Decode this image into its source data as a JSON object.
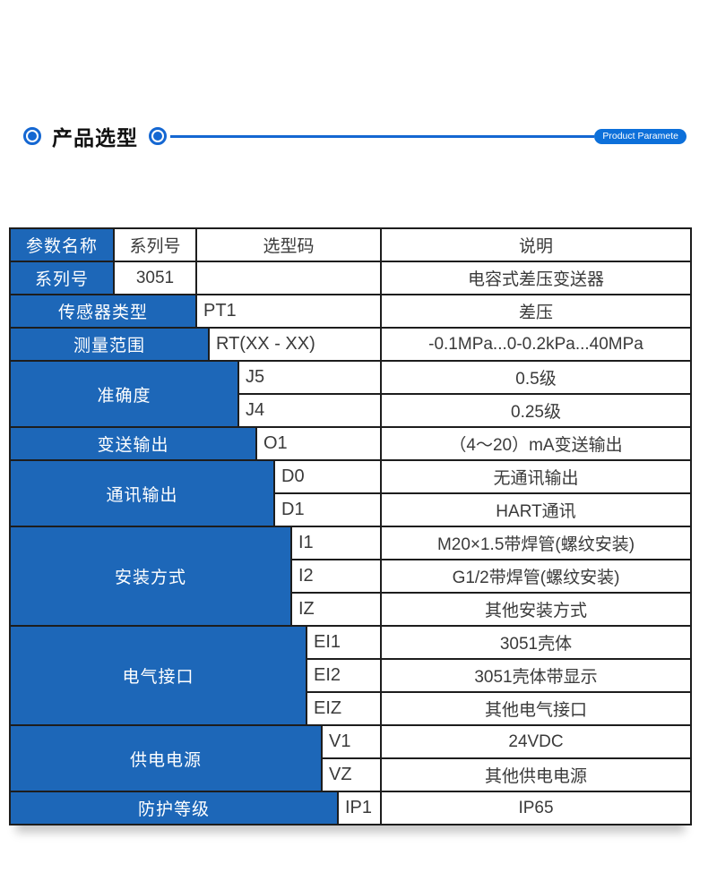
{
  "header": {
    "title": "产品选型",
    "ribbon_label": "Product Paramete",
    "accent_color": "#1467d2",
    "ribbon_color": "#0d70da"
  },
  "table": {
    "blue": "#1d67b8",
    "border_color": "#1d1d1d",
    "columns": {
      "param": "参数名称",
      "series": "系列号",
      "code": "选型码",
      "desc": "说明"
    },
    "series_row": {
      "label": "系列号",
      "code": "3051",
      "desc": "电容式差压变送器"
    },
    "groups": [
      {
        "label": "传感器类型",
        "rows": [
          {
            "code": "PT1",
            "desc": "差压"
          }
        ]
      },
      {
        "label": "测量范围",
        "rows": [
          {
            "code": "RT(XX - XX)",
            "desc": "-0.1MPa...0-0.2kPa...40MPa"
          }
        ]
      },
      {
        "label": "准确度",
        "rows": [
          {
            "code": "J5",
            "desc": "0.5级"
          },
          {
            "code": "J4",
            "desc": "0.25级"
          }
        ]
      },
      {
        "label": "变送输出",
        "rows": [
          {
            "code": "O1",
            "desc": "（4～20）mA变送输出"
          }
        ]
      },
      {
        "label": "通讯输出",
        "rows": [
          {
            "code": "D0",
            "desc": "无通讯输出"
          },
          {
            "code": "D1",
            "desc": "HART通讯"
          }
        ]
      },
      {
        "label": "安装方式",
        "rows": [
          {
            "code": "I1",
            "desc": "M20×1.5带焊管(螺纹安装)"
          },
          {
            "code": "I2",
            "desc": "G1/2带焊管(螺纹安装)"
          },
          {
            "code": "IZ",
            "desc": "其他安装方式"
          }
        ]
      },
      {
        "label": "电气接口",
        "rows": [
          {
            "code": "EI1",
            "desc": "3051壳体"
          },
          {
            "code": "EI2",
            "desc": "3051壳体带显示"
          },
          {
            "code": "EIZ",
            "desc": "其他电气接口"
          }
        ]
      },
      {
        "label": "供电电源",
        "rows": [
          {
            "code": "V1",
            "desc": "24VDC"
          },
          {
            "code": "VZ",
            "desc": "其他供电电源"
          }
        ]
      },
      {
        "label": "防护等级",
        "rows": [
          {
            "code": "IP1",
            "desc": "IP65"
          }
        ]
      }
    ]
  }
}
